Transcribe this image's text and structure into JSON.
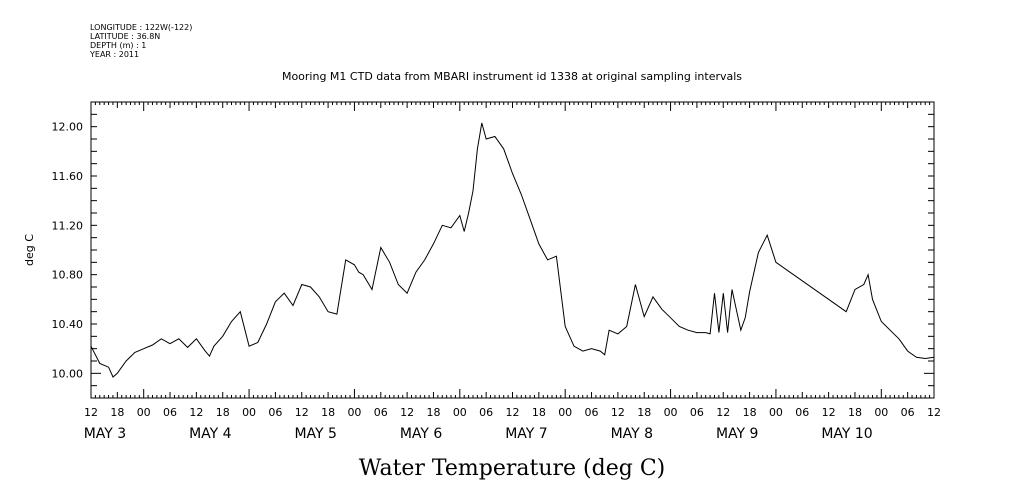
{
  "header": {
    "meta_lines": [
      "LONGITUDE : 122W(-122)",
      "LATITUDE : 36.8N",
      "DEPTH (m) : 1",
      "YEAR : 2011"
    ],
    "title": "Mooring M1 CTD data from MBARI instrument id 1338 at original sampling intervals"
  },
  "chart_data": {
    "type": "line",
    "title": "Mooring M1 CTD data from MBARI instrument id 1338 at original sampling intervals",
    "xlabel": "Water Temperature (deg C)",
    "ylabel": "deg C",
    "xlim_hours_label": [
      "MAY 2 12",
      "MAY 10 12"
    ],
    "ylim": [
      9.8,
      12.2
    ],
    "y_ticks": [
      "10.00",
      "10.40",
      "10.80",
      "11.20",
      "11.60",
      "12.00"
    ],
    "x_hour_ticks": [
      "12",
      "18",
      "00",
      "06",
      "12",
      "18",
      "00",
      "06",
      "12",
      "18",
      "00",
      "06",
      "12",
      "18",
      "00",
      "06",
      "12",
      "18",
      "00",
      "06",
      "12",
      "18",
      "00",
      "06",
      "12",
      "18",
      "00",
      "06",
      "12",
      "18",
      "00",
      "06",
      "12"
    ],
    "x_day_labels": [
      {
        "label": "MAY   3",
        "at": "MAY 3 00"
      },
      {
        "label": "MAY   4",
        "at": "MAY 4 00"
      },
      {
        "label": "MAY   5",
        "at": "MAY 5 00"
      },
      {
        "label": "MAY   6",
        "at": "MAY 6 00"
      },
      {
        "label": "MAY   7",
        "at": "MAY 7 00"
      },
      {
        "label": "MAY   8",
        "at": "MAY 8 00"
      },
      {
        "label": "MAY   9",
        "at": "MAY 9 00"
      },
      {
        "label": "MAY 10",
        "at": "MAY 10 00"
      }
    ],
    "grid": false,
    "series": [
      {
        "color": "#000000",
        "x_start": "2011-05-02 12:00",
        "x": [
          "05-02 12:00",
          "05-02 14:00",
          "05-02 16:00",
          "05-02 17:00",
          "05-02 18:00",
          "05-02 20:00",
          "05-02 22:00",
          "05-03 00:00",
          "05-03 02:00",
          "05-03 04:00",
          "05-03 06:00",
          "05-03 08:00",
          "05-03 10:00",
          "05-03 12:00",
          "05-03 14:00",
          "05-03 15:00",
          "05-03 16:00",
          "05-03 18:00",
          "05-03 20:00",
          "05-03 22:00",
          "05-04 00:00",
          "05-04 02:00",
          "05-04 04:00",
          "05-04 06:00",
          "05-04 08:00",
          "05-04 10:00",
          "05-04 12:00",
          "05-04 14:00",
          "05-04 16:00",
          "05-04 18:00",
          "05-04 20:00",
          "05-04 22:00",
          "05-05 00:00",
          "05-05 01:00",
          "05-05 02:00",
          "05-05 04:00",
          "05-05 06:00",
          "05-05 08:00",
          "05-05 10:00",
          "05-05 12:00",
          "05-05 14:00",
          "05-05 16:00",
          "05-05 18:00",
          "05-05 20:00",
          "05-05 22:00",
          "05-06 00:00",
          "05-06 01:00",
          "05-06 02:00",
          "05-06 03:00",
          "05-06 04:00",
          "05-06 05:00",
          "05-06 06:00",
          "05-06 08:00",
          "05-06 10:00",
          "05-06 12:00",
          "05-06 14:00",
          "05-06 16:00",
          "05-06 18:00",
          "05-06 20:00",
          "05-06 22:00",
          "05-07 00:00",
          "05-07 02:00",
          "05-07 04:00",
          "05-07 06:00",
          "05-07 08:00",
          "05-07 09:00",
          "05-07 10:00",
          "05-07 12:00",
          "05-07 14:00",
          "05-07 16:00",
          "05-07 18:00",
          "05-07 20:00",
          "05-07 22:00",
          "05-08 00:00",
          "05-08 02:00",
          "05-08 04:00",
          "05-08 06:00",
          "05-08 08:00",
          "05-08 09:00",
          "05-08 10:00",
          "05-08 11:00",
          "05-08 12:00",
          "05-08 13:00",
          "05-08 14:00",
          "05-08 16:00",
          "05-08 17:00",
          "05-08 18:00",
          "05-08 20:00",
          "05-08 22:00",
          "05-09 00:00",
          "05-09 16:00",
          "05-09 18:00",
          "05-09 20:00",
          "05-09 21:00",
          "05-09 22:00",
          "05-10 00:00",
          "05-10 02:00",
          "05-10 04:00",
          "05-10 06:00",
          "05-10 08:00",
          "05-10 10:00",
          "05-10 12:00"
        ],
        "values": [
          10.22,
          10.08,
          10.05,
          9.97,
          10.0,
          10.1,
          10.17,
          10.2,
          10.23,
          10.28,
          10.24,
          10.28,
          10.21,
          10.28,
          10.18,
          10.14,
          10.22,
          10.3,
          10.42,
          10.5,
          10.22,
          10.25,
          10.4,
          10.58,
          10.65,
          10.55,
          10.72,
          10.7,
          10.62,
          10.5,
          10.48,
          10.92,
          10.88,
          10.82,
          10.8,
          10.68,
          11.02,
          10.9,
          10.72,
          10.65,
          10.82,
          10.92,
          11.05,
          11.2,
          11.18,
          11.28,
          11.15,
          11.3,
          11.48,
          11.82,
          12.03,
          11.9,
          11.92,
          11.82,
          11.62,
          11.45,
          11.25,
          11.05,
          10.92,
          10.95,
          10.38,
          10.22,
          10.18,
          10.2,
          10.18,
          10.15,
          10.35,
          10.32,
          10.38,
          10.72,
          10.46,
          10.62,
          10.52,
          10.45,
          10.38,
          10.35,
          10.33,
          10.33,
          10.32,
          10.65,
          10.33,
          10.65,
          10.33,
          10.68,
          10.35,
          10.45,
          10.66,
          10.98,
          11.12,
          10.9,
          10.5,
          10.68,
          10.72,
          10.8,
          10.6,
          10.42,
          10.35,
          10.28,
          10.18,
          10.13,
          10.12,
          10.13
        ]
      }
    ]
  }
}
